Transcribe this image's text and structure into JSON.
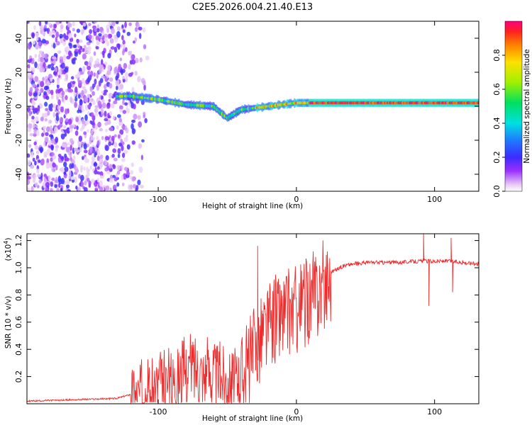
{
  "page_title": "C2E5.2026.004.21.40.E13",
  "colors": {
    "snr_line": "#ee2a2a",
    "axis": "#000000",
    "background": "#ffffff"
  },
  "chart_data": [
    {
      "type": "heatmap",
      "name": "spectrogram",
      "title": "C2E5.2026.004.21.40.E13",
      "xlabel": "Height of straight line (km)",
      "ylabel": "Frequency (Hz)",
      "xlim": [
        -195,
        132
      ],
      "ylim": [
        -50,
        50
      ],
      "x_ticks": [
        -100,
        0,
        100
      ],
      "x_tick_labels": [
        "-100",
        "0",
        "100"
      ],
      "y_ticks": [
        -40,
        -20,
        0,
        20,
        40
      ],
      "y_tick_labels": [
        "-40",
        "-20",
        "0",
        "20",
        "40"
      ],
      "ridge_frequency_hz": [
        {
          "x": -165,
          "y": 5
        },
        {
          "x": -120,
          "y": 6
        },
        {
          "x": -100,
          "y": 4
        },
        {
          "x": -80,
          "y": 1
        },
        {
          "x": -60,
          "y": 0
        },
        {
          "x": -50,
          "y": -7
        },
        {
          "x": -40,
          "y": -2
        },
        {
          "x": -20,
          "y": 0
        },
        {
          "x": 0,
          "y": 2
        },
        {
          "x": 50,
          "y": 2
        },
        {
          "x": 100,
          "y": 2
        },
        {
          "x": 130,
          "y": 2
        }
      ],
      "colorbar": {
        "label": "Normalized spectral amplitude",
        "range": [
          0.0,
          1.0
        ],
        "ticks": [
          0.0,
          0.2,
          0.4,
          0.6,
          0.8
        ],
        "tick_labels": [
          "0.0",
          "0.2",
          "0.4",
          "0.6",
          "0.8"
        ]
      }
    },
    {
      "type": "line",
      "name": "snr",
      "xlabel": "Height of straight line (km)",
      "ylabel": "SNR (10 * v/v)",
      "y_multiplier_label": "(x10",
      "y_multiplier_exp": "4",
      "y_multiplier_close": ")",
      "xlim": [
        -195,
        132
      ],
      "ylim": [
        0,
        1.25
      ],
      "x_ticks": [
        -100,
        0,
        100
      ],
      "x_tick_labels": [
        "-100",
        "0",
        "100"
      ],
      "y_ticks": [
        0.2,
        0.4,
        0.6,
        0.8,
        1.0,
        1.2
      ],
      "y_tick_labels": [
        "0.2",
        "0.4",
        "0.6",
        "0.8",
        "1.0",
        "1.2"
      ],
      "envelope": [
        {
          "x": -195,
          "y": 0.02
        },
        {
          "x": -160,
          "y": 0.03
        },
        {
          "x": -130,
          "y": 0.04
        },
        {
          "x": -110,
          "y": 0.1
        },
        {
          "x": -90,
          "y": 0.2
        },
        {
          "x": -75,
          "y": 0.3
        },
        {
          "x": -60,
          "y": 0.25
        },
        {
          "x": -45,
          "y": 0.2
        },
        {
          "x": -35,
          "y": 0.3
        },
        {
          "x": -25,
          "y": 0.55
        },
        {
          "x": -15,
          "y": 0.65
        },
        {
          "x": -5,
          "y": 0.7
        },
        {
          "x": 5,
          "y": 0.75
        },
        {
          "x": 15,
          "y": 0.85
        },
        {
          "x": 25,
          "y": 0.97
        },
        {
          "x": 35,
          "y": 1.02
        },
        {
          "x": 50,
          "y": 1.04
        },
        {
          "x": 70,
          "y": 1.04
        },
        {
          "x": 90,
          "y": 1.05
        },
        {
          "x": 110,
          "y": 1.05
        },
        {
          "x": 132,
          "y": 1.03
        }
      ],
      "spikes": [
        {
          "x": -28,
          "y": 1.16
        },
        {
          "x": -15,
          "y": 0.95
        },
        {
          "x": 92,
          "y": 1.25
        },
        {
          "x": 96,
          "y": 0.72
        },
        {
          "x": 112,
          "y": 1.22
        },
        {
          "x": 113,
          "y": 0.82
        }
      ]
    }
  ]
}
